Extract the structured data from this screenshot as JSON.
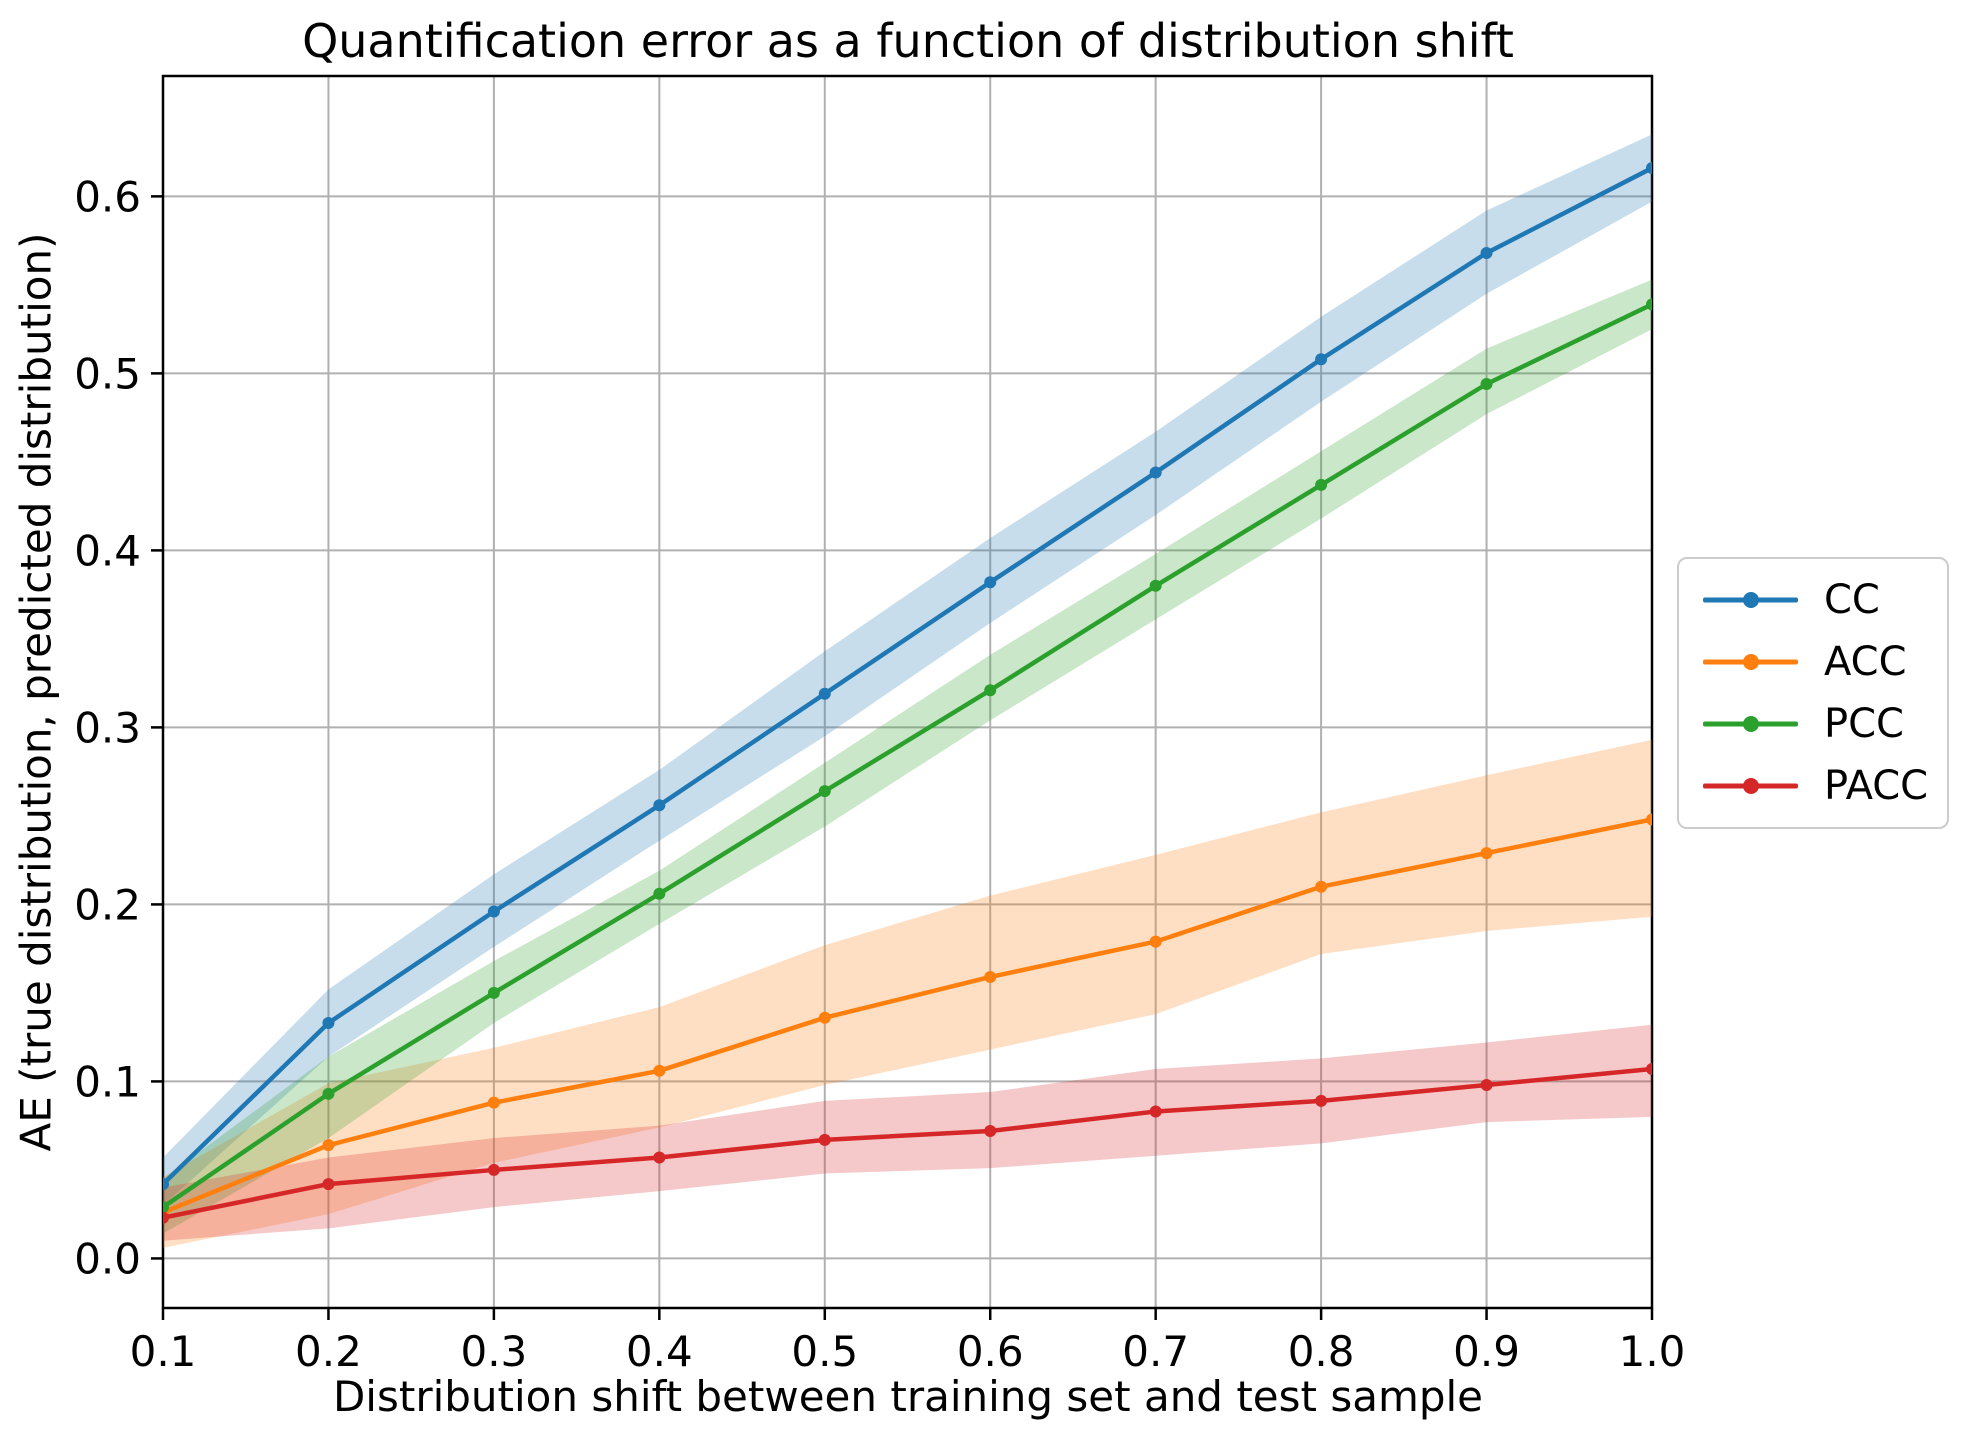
{
  "chart_data": {
    "type": "line",
    "title": "Quantification error as a function of distribution shift",
    "xlabel": "Distribution shift between training set and test sample",
    "ylabel": "AE (true distribution, predicted distribution)",
    "x": [
      0.1,
      0.2,
      0.3,
      0.4,
      0.5,
      0.6,
      0.7,
      0.8,
      0.9,
      1.0
    ],
    "x_tick_labels": [
      "0.1",
      "0.2",
      "0.3",
      "0.4",
      "0.5",
      "0.6",
      "0.7",
      "0.8",
      "0.9",
      "1.0"
    ],
    "y_tick_values": [
      0.0,
      0.1,
      0.2,
      0.3,
      0.4,
      0.5,
      0.6
    ],
    "y_tick_labels": [
      "0.0",
      "0.1",
      "0.2",
      "0.3",
      "0.4",
      "0.5",
      "0.6"
    ],
    "xlim": [
      0.1,
      1.0
    ],
    "ylim": [
      -0.028,
      0.668
    ],
    "grid": true,
    "grid_color": "#b0b0b0",
    "spine_color": "#000000",
    "band_opacity": 0.25,
    "legend_position": "outside-right",
    "series": [
      {
        "name": "CC",
        "color": "#1f77b4",
        "values": [
          0.042,
          0.133,
          0.196,
          0.256,
          0.319,
          0.382,
          0.444,
          0.508,
          0.568,
          0.616
        ],
        "band_lower": [
          0.03,
          0.114,
          0.176,
          0.236,
          0.295,
          0.359,
          0.42,
          0.484,
          0.545,
          0.597
        ],
        "band_upper": [
          0.057,
          0.152,
          0.217,
          0.276,
          0.343,
          0.407,
          0.467,
          0.532,
          0.592,
          0.635
        ]
      },
      {
        "name": "ACC",
        "color": "#ff7f0e",
        "values": [
          0.026,
          0.064,
          0.088,
          0.106,
          0.136,
          0.159,
          0.179,
          0.21,
          0.229,
          0.248
        ],
        "band_lower": [
          0.006,
          0.025,
          0.054,
          0.074,
          0.098,
          0.118,
          0.138,
          0.172,
          0.185,
          0.193
        ],
        "band_upper": [
          0.046,
          0.099,
          0.119,
          0.142,
          0.177,
          0.205,
          0.228,
          0.252,
          0.273,
          0.293
        ]
      },
      {
        "name": "PCC",
        "color": "#2ca02c",
        "values": [
          0.029,
          0.093,
          0.15,
          0.206,
          0.264,
          0.321,
          0.38,
          0.437,
          0.494,
          0.539
        ],
        "band_lower": [
          0.014,
          0.068,
          0.133,
          0.189,
          0.244,
          0.304,
          0.361,
          0.418,
          0.477,
          0.525
        ],
        "band_upper": [
          0.045,
          0.114,
          0.168,
          0.219,
          0.28,
          0.341,
          0.398,
          0.456,
          0.514,
          0.553
        ]
      },
      {
        "name": "PACC",
        "color": "#d62728",
        "values": [
          0.023,
          0.042,
          0.05,
          0.057,
          0.067,
          0.072,
          0.083,
          0.089,
          0.098,
          0.107
        ],
        "band_lower": [
          0.01,
          0.017,
          0.029,
          0.038,
          0.048,
          0.051,
          0.058,
          0.065,
          0.077,
          0.08
        ],
        "band_upper": [
          0.04,
          0.057,
          0.068,
          0.075,
          0.089,
          0.094,
          0.107,
          0.113,
          0.122,
          0.132
        ]
      }
    ]
  }
}
